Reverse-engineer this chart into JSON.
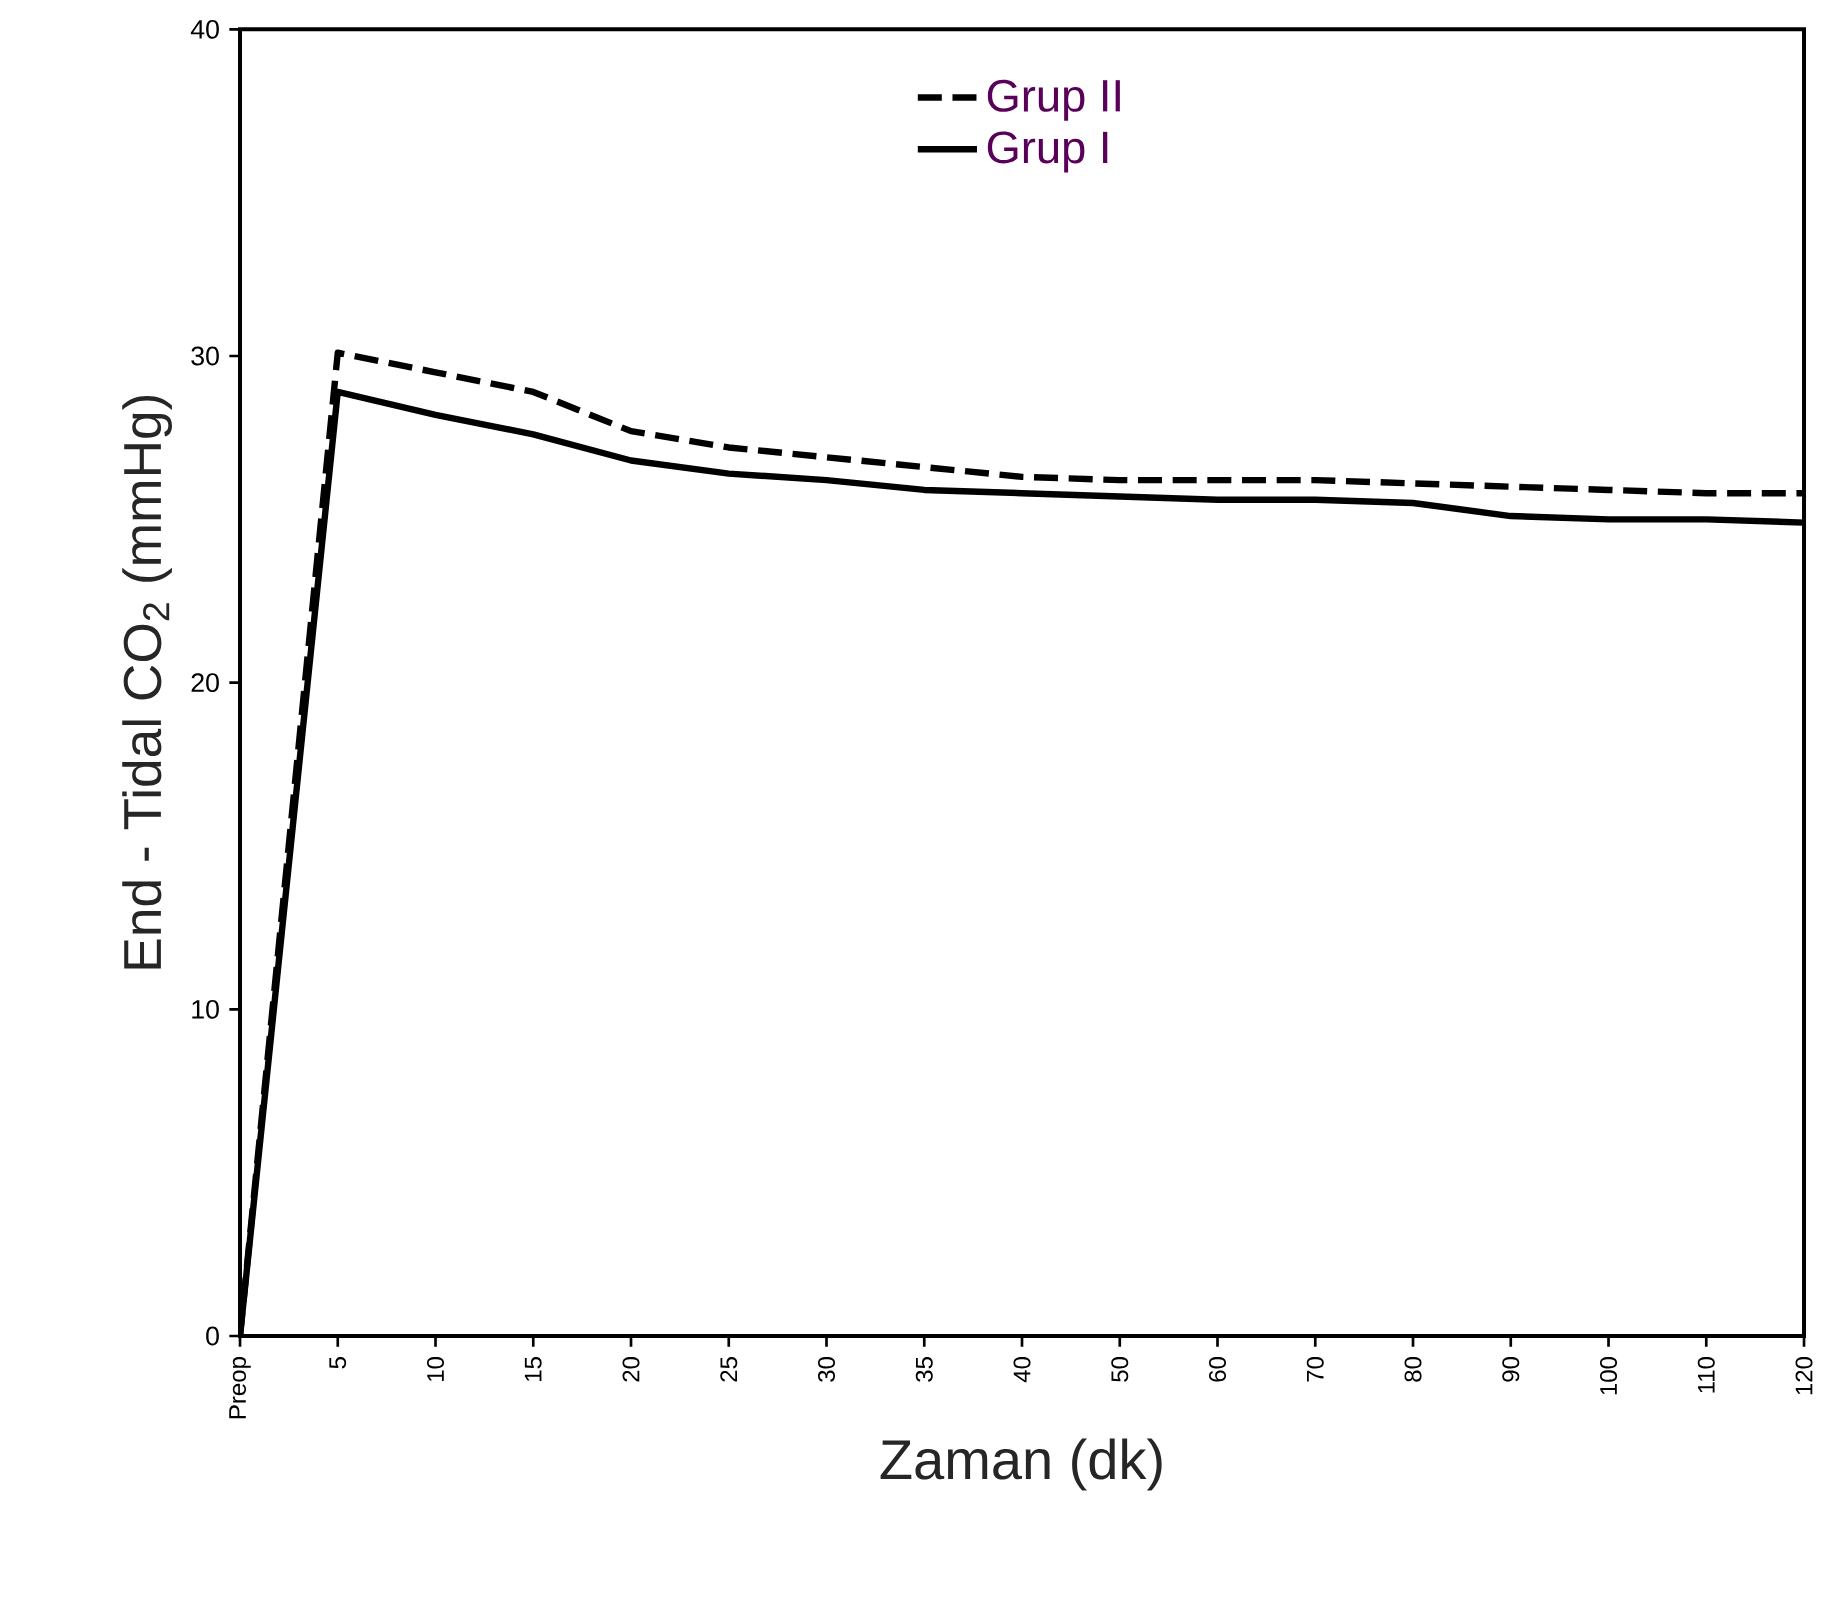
{
  "chart_data": {
    "type": "line",
    "xlabel": "Zaman (dk)",
    "ylabel": "End - Tidal CO$_{2}$ (mmHg)",
    "categories": [
      "Preop",
      "5",
      "10",
      "15",
      "20",
      "25",
      "30",
      "35",
      "40",
      "50",
      "60",
      "70",
      "80",
      "90",
      "100",
      "110",
      "120"
    ],
    "series": [
      {
        "name": "Grup II",
        "color": "#000000",
        "line_style": "dashed",
        "values": [
          0,
          30.1,
          29.5,
          28.9,
          27.7,
          27.2,
          26.9,
          26.6,
          26.3,
          26.2,
          26.2,
          26.2,
          26.1,
          26.0,
          25.9,
          25.8,
          25.8
        ]
      },
      {
        "name": "Grup I",
        "color": "#000000",
        "line_style": "solid",
        "values": [
          0,
          28.9,
          28.2,
          27.6,
          26.8,
          26.4,
          26.2,
          25.9,
          25.8,
          25.7,
          25.6,
          25.6,
          25.5,
          25.1,
          25.0,
          25.0,
          24.9
        ]
      }
    ],
    "ylim": [
      0,
      40
    ],
    "yticks": [
      0,
      10,
      20,
      30,
      40
    ],
    "grid": false,
    "legend": "top",
    "marker": "none"
  }
}
